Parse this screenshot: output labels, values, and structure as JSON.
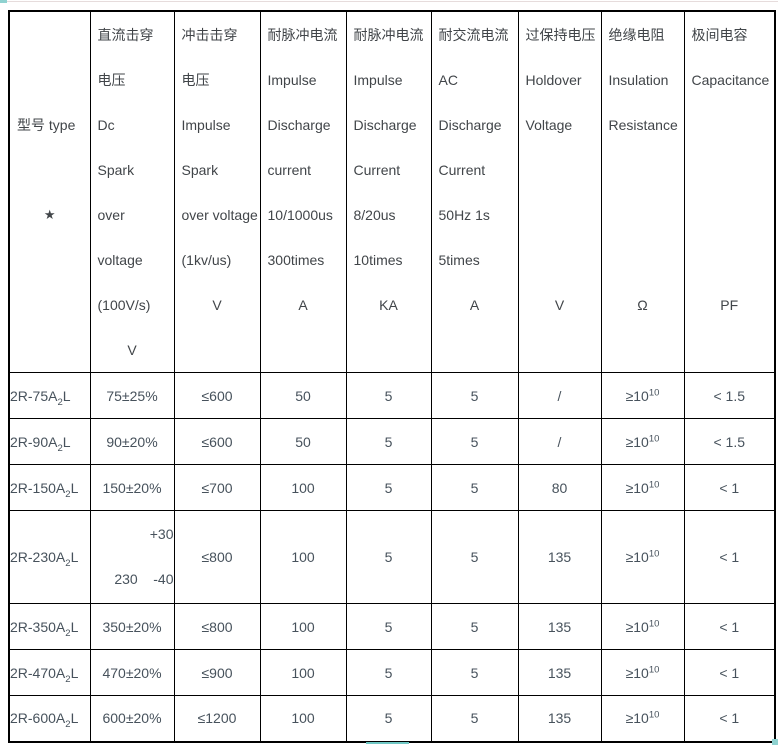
{
  "colors": {
    "border": "#000000",
    "header_text": "#414549",
    "value_text": "#47525c",
    "accent_teal": "#6fc7c4",
    "page_background": "#ffffff"
  },
  "artifacts": {
    "top_left_handle": "selection-handle",
    "bottom_underline": "selection-underline",
    "bottom_right_handle": "table-resize-handle"
  },
  "table": {
    "columns": [
      {
        "key": "type",
        "header_lines": [
          {
            "t": ""
          },
          {
            "t": ""
          },
          {
            "t": "型号  type"
          },
          {
            "t": ""
          },
          {
            "t": "★",
            "star": true
          },
          {
            "t": ""
          },
          {
            "t": ""
          },
          {
            "t": ""
          }
        ]
      },
      {
        "key": "dc_spark",
        "header_lines": [
          {
            "t": "直流击穿"
          },
          {
            "t": "电压"
          },
          {
            "t": "Dc"
          },
          {
            "t": "Spark"
          },
          {
            "t": "over"
          },
          {
            "t": "voltage"
          },
          {
            "t": "(100V/s)"
          },
          {
            "t": "V",
            "center": true
          }
        ]
      },
      {
        "key": "impulse_spark",
        "header_lines": [
          {
            "t": "冲击击穿"
          },
          {
            "t": "电压"
          },
          {
            "t": "Impulse"
          },
          {
            "t": "Spark"
          },
          {
            "t": "over voltage"
          },
          {
            "t": "(1kv/us)"
          },
          {
            "t": "V",
            "center": true
          },
          {
            "t": ""
          }
        ]
      },
      {
        "key": "impulse_discharge_a",
        "header_lines": [
          {
            "t": "耐脉冲电流"
          },
          {
            "t": "Impulse"
          },
          {
            "t": "Discharge"
          },
          {
            "t": "current"
          },
          {
            "t": "10/1000us"
          },
          {
            "t": "300times"
          },
          {
            "t": "A",
            "center": true
          },
          {
            "t": ""
          }
        ]
      },
      {
        "key": "impulse_discharge_ka",
        "header_lines": [
          {
            "t": "耐脉冲电流"
          },
          {
            "t": "Impulse"
          },
          {
            "t": "Discharge"
          },
          {
            "t": "Current"
          },
          {
            "t": "8/20us"
          },
          {
            "t": "10times"
          },
          {
            "t": "KA",
            "center": true
          },
          {
            "t": ""
          }
        ]
      },
      {
        "key": "ac_discharge",
        "header_lines": [
          {
            "t": "耐交流电流"
          },
          {
            "t": "AC"
          },
          {
            "t": "Discharge"
          },
          {
            "t": "Current"
          },
          {
            "t": "50Hz 1s"
          },
          {
            "t": "5times"
          },
          {
            "t": "A",
            "center": true
          },
          {
            "t": ""
          }
        ]
      },
      {
        "key": "holdover",
        "header_lines": [
          {
            "t": "过保持电压"
          },
          {
            "t": "Holdover"
          },
          {
            "t": "Voltage"
          },
          {
            "t": ""
          },
          {
            "t": ""
          },
          {
            "t": ""
          },
          {
            "t": "V",
            "center": true
          },
          {
            "t": ""
          }
        ]
      },
      {
        "key": "insulation",
        "header_lines": [
          {
            "t": "绝缘电阻"
          },
          {
            "t": "Insulation"
          },
          {
            "t": "Resistance"
          },
          {
            "t": ""
          },
          {
            "t": ""
          },
          {
            "t": ""
          },
          {
            "t": "Ω",
            "center": true
          },
          {
            "t": ""
          }
        ]
      },
      {
        "key": "capacitance",
        "header_lines": [
          {
            "t": "极间电容"
          },
          {
            "t": "Capacitance"
          },
          {
            "t": ""
          },
          {
            "t": ""
          },
          {
            "t": ""
          },
          {
            "t": ""
          },
          {
            "t": "PF",
            "center": true
          },
          {
            "t": ""
          }
        ]
      }
    ],
    "rows": [
      {
        "type": "2R-75A_{2}L",
        "dc_spark": "75±25%",
        "impulse_spark": "≤600",
        "impulse_discharge_a": "50",
        "impulse_discharge_ka": "5",
        "ac_discharge": "5",
        "holdover": "/",
        "insulation": "≥10^{10}",
        "capacitance": "< 1.5"
      },
      {
        "type": "2R-90A_{2}L",
        "dc_spark": "90±20%",
        "impulse_spark": "≤600",
        "impulse_discharge_a": "50",
        "impulse_discharge_ka": "5",
        "ac_discharge": "5",
        "holdover": "/",
        "insulation": "≥10^{10}",
        "capacitance": "< 1.5"
      },
      {
        "type": "2R-150A_{2}L",
        "dc_spark": "150±20%",
        "impulse_spark": "≤700",
        "impulse_discharge_a": "100",
        "impulse_discharge_ka": "5",
        "ac_discharge": "5",
        "holdover": "80",
        "insulation": "≥10^{10}",
        "capacitance": "< 1"
      },
      {
        "type": "2R-230A_{2}L",
        "dc_spark": "+30\n230    -40",
        "impulse_spark": "≤800",
        "impulse_discharge_a": "100",
        "impulse_discharge_ka": "5",
        "ac_discharge": "5",
        "holdover": "135",
        "insulation": "≥10^{10}",
        "capacitance": "< 1"
      },
      {
        "type": "2R-350A_{2}L",
        "dc_spark": "350±20%",
        "impulse_spark": "≤800",
        "impulse_discharge_a": "100",
        "impulse_discharge_ka": "5",
        "ac_discharge": "5",
        "holdover": "135",
        "insulation": "≥10^{10}",
        "capacitance": "< 1"
      },
      {
        "type": "2R-470A_{2}L",
        "dc_spark": "470±20%",
        "impulse_spark": "≤900",
        "impulse_discharge_a": "100",
        "impulse_discharge_ka": "5",
        "ac_discharge": "5",
        "holdover": "135",
        "insulation": "≥10^{10}",
        "capacitance": "< 1"
      },
      {
        "type": "2R-600A_{2}L",
        "dc_spark": "600±20%",
        "impulse_spark": "≤1200",
        "impulse_discharge_a": "100",
        "impulse_discharge_ka": "5",
        "ac_discharge": "5",
        "holdover": "135",
        "insulation": "≥10^{10}",
        "capacitance": "< 1"
      }
    ]
  }
}
